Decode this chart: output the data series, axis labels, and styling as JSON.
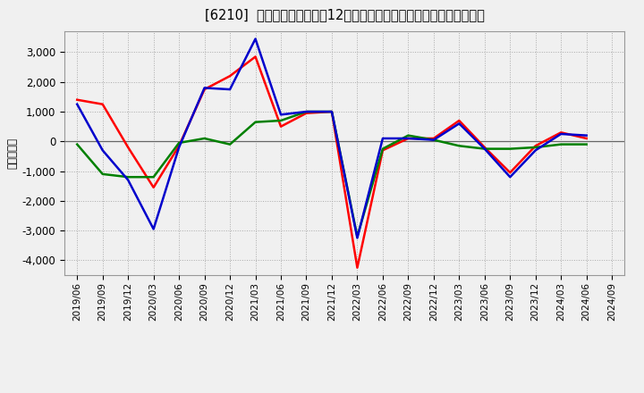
{
  "title": "[6210]  キャッシュフローの12か月移動合計の対前年同期増減額の推移",
  "ylabel": "（百万円）",
  "background_color": "#f0f0f0",
  "plot_bg_color": "#f0f0f0",
  "grid_color": "#aaaaaa",
  "dates": [
    "2019/06",
    "2019/09",
    "2019/12",
    "2020/03",
    "2020/06",
    "2020/09",
    "2020/12",
    "2021/03",
    "2021/06",
    "2021/09",
    "2021/12",
    "2022/03",
    "2022/06",
    "2022/09",
    "2022/12",
    "2023/03",
    "2023/06",
    "2023/09",
    "2023/12",
    "2024/03",
    "2024/06",
    "2024/09"
  ],
  "eigyo_cf": [
    1400,
    1250,
    -200,
    -1550,
    -150,
    1750,
    2200,
    2850,
    500,
    950,
    1000,
    -4250,
    -300,
    100,
    100,
    700,
    -200,
    -1050,
    -150,
    300,
    100,
    null
  ],
  "toshi_cf": [
    -100,
    -1100,
    -1200,
    -1200,
    -50,
    100,
    -100,
    650,
    700,
    1000,
    1000,
    -3200,
    -250,
    200,
    50,
    -150,
    -250,
    -250,
    -200,
    -100,
    -100,
    null
  ],
  "free_cf": [
    1250,
    -300,
    -1300,
    -2950,
    -200,
    1800,
    1750,
    3450,
    900,
    1000,
    1000,
    -3250,
    100,
    100,
    50,
    600,
    -250,
    -1200,
    -300,
    250,
    200,
    null
  ],
  "eigyo_color": "#ff0000",
  "toshi_color": "#008000",
  "free_color": "#0000cc",
  "ylim": [
    -4500,
    3700
  ],
  "yticks": [
    -4000,
    -3000,
    -2000,
    -1000,
    0,
    1000,
    2000,
    3000
  ]
}
